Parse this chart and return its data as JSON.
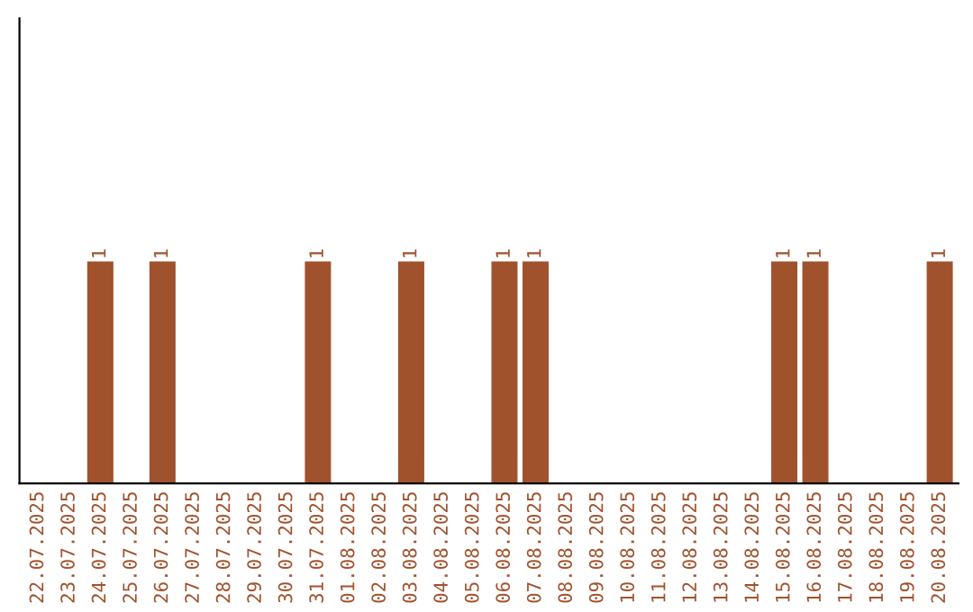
{
  "chart_data": {
    "type": "bar",
    "categories": [
      "22.07.2025",
      "23.07.2025",
      "24.07.2025",
      "25.07.2025",
      "26.07.2025",
      "27.07.2025",
      "28.07.2025",
      "29.07.2025",
      "30.07.2025",
      "31.07.2025",
      "01.08.2025",
      "02.08.2025",
      "03.08.2025",
      "04.08.2025",
      "05.08.2025",
      "06.08.2025",
      "07.08.2025",
      "08.08.2025",
      "09.08.2025",
      "10.08.2025",
      "11.08.2025",
      "12.08.2025",
      "13.08.2025",
      "14.08.2025",
      "15.08.2025",
      "16.08.2025",
      "17.08.2025",
      "18.08.2025",
      "19.08.2025",
      "20.08.2025"
    ],
    "values": [
      0,
      0,
      1,
      0,
      1,
      0,
      0,
      0,
      0,
      1,
      0,
      0,
      1,
      0,
      0,
      1,
      1,
      0,
      0,
      0,
      0,
      0,
      0,
      0,
      1,
      1,
      0,
      0,
      0,
      1
    ],
    "value_labels": [
      null,
      null,
      "1",
      null,
      "1",
      null,
      null,
      null,
      null,
      "1",
      null,
      null,
      "1",
      null,
      null,
      "1",
      "1",
      null,
      null,
      null,
      null,
      null,
      null,
      null,
      "1",
      "1",
      null,
      null,
      null,
      "1"
    ],
    "color": "#a0522d",
    "ylim": [
      0,
      2.1
    ],
    "tick_labels": "x",
    "grid": false,
    "legend": false
  }
}
